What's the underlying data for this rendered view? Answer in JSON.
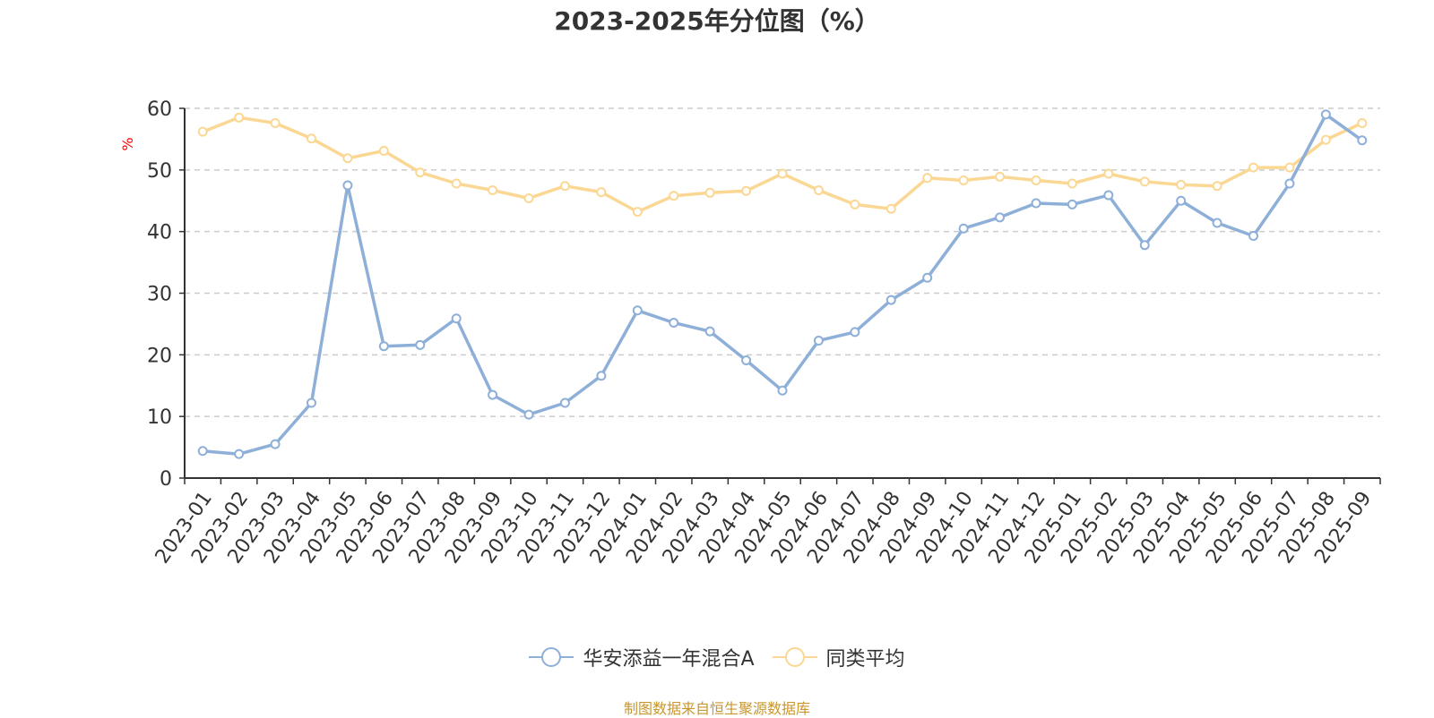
{
  "chart_data": {
    "type": "line",
    "title": "2023-2025年分位图（%）",
    "ylabel": "%",
    "xlabel": "",
    "ylim": [
      0,
      60
    ],
    "yticks": [
      0,
      10,
      20,
      30,
      40,
      50,
      60
    ],
    "grid": true,
    "legend_position": "bottom",
    "categories": [
      "2023-01",
      "2023-02",
      "2023-03",
      "2023-04",
      "2023-05",
      "2023-06",
      "2023-07",
      "2023-08",
      "2023-09",
      "2023-10",
      "2023-11",
      "2023-12",
      "2024-01",
      "2024-02",
      "2024-03",
      "2024-04",
      "2024-05",
      "2024-06",
      "2024-07",
      "2024-08",
      "2024-09",
      "2024-10",
      "2024-11",
      "2024-12",
      "2025-01",
      "2025-02",
      "2025-03",
      "2025-04",
      "2025-05",
      "2025-06",
      "2025-07",
      "2025-08",
      "2025-09"
    ],
    "series": [
      {
        "name": "华安添益一年混合A",
        "color": "#8eafd8",
        "values": [
          4.4,
          3.9,
          5.5,
          12.2,
          47.5,
          21.4,
          21.6,
          25.9,
          13.5,
          10.3,
          12.2,
          16.6,
          27.2,
          25.2,
          23.8,
          19.1,
          14.2,
          22.3,
          23.7,
          28.9,
          32.5,
          40.5,
          42.3,
          44.6,
          44.4,
          45.9,
          37.8,
          45.0,
          41.4,
          39.3,
          47.8,
          59.0,
          54.8
        ]
      },
      {
        "name": "同类平均",
        "color": "#fbd794",
        "values": [
          56.2,
          58.5,
          57.6,
          55.1,
          51.9,
          53.1,
          49.6,
          47.8,
          46.7,
          45.4,
          47.4,
          46.4,
          43.2,
          45.8,
          46.3,
          46.6,
          49.4,
          46.7,
          44.4,
          43.7,
          48.7,
          48.3,
          48.9,
          48.3,
          47.8,
          49.4,
          48.1,
          47.6,
          47.4,
          50.4,
          50.4,
          54.9,
          57.6
        ]
      }
    ]
  },
  "source_note": "制图数据来自恒生聚源数据库"
}
